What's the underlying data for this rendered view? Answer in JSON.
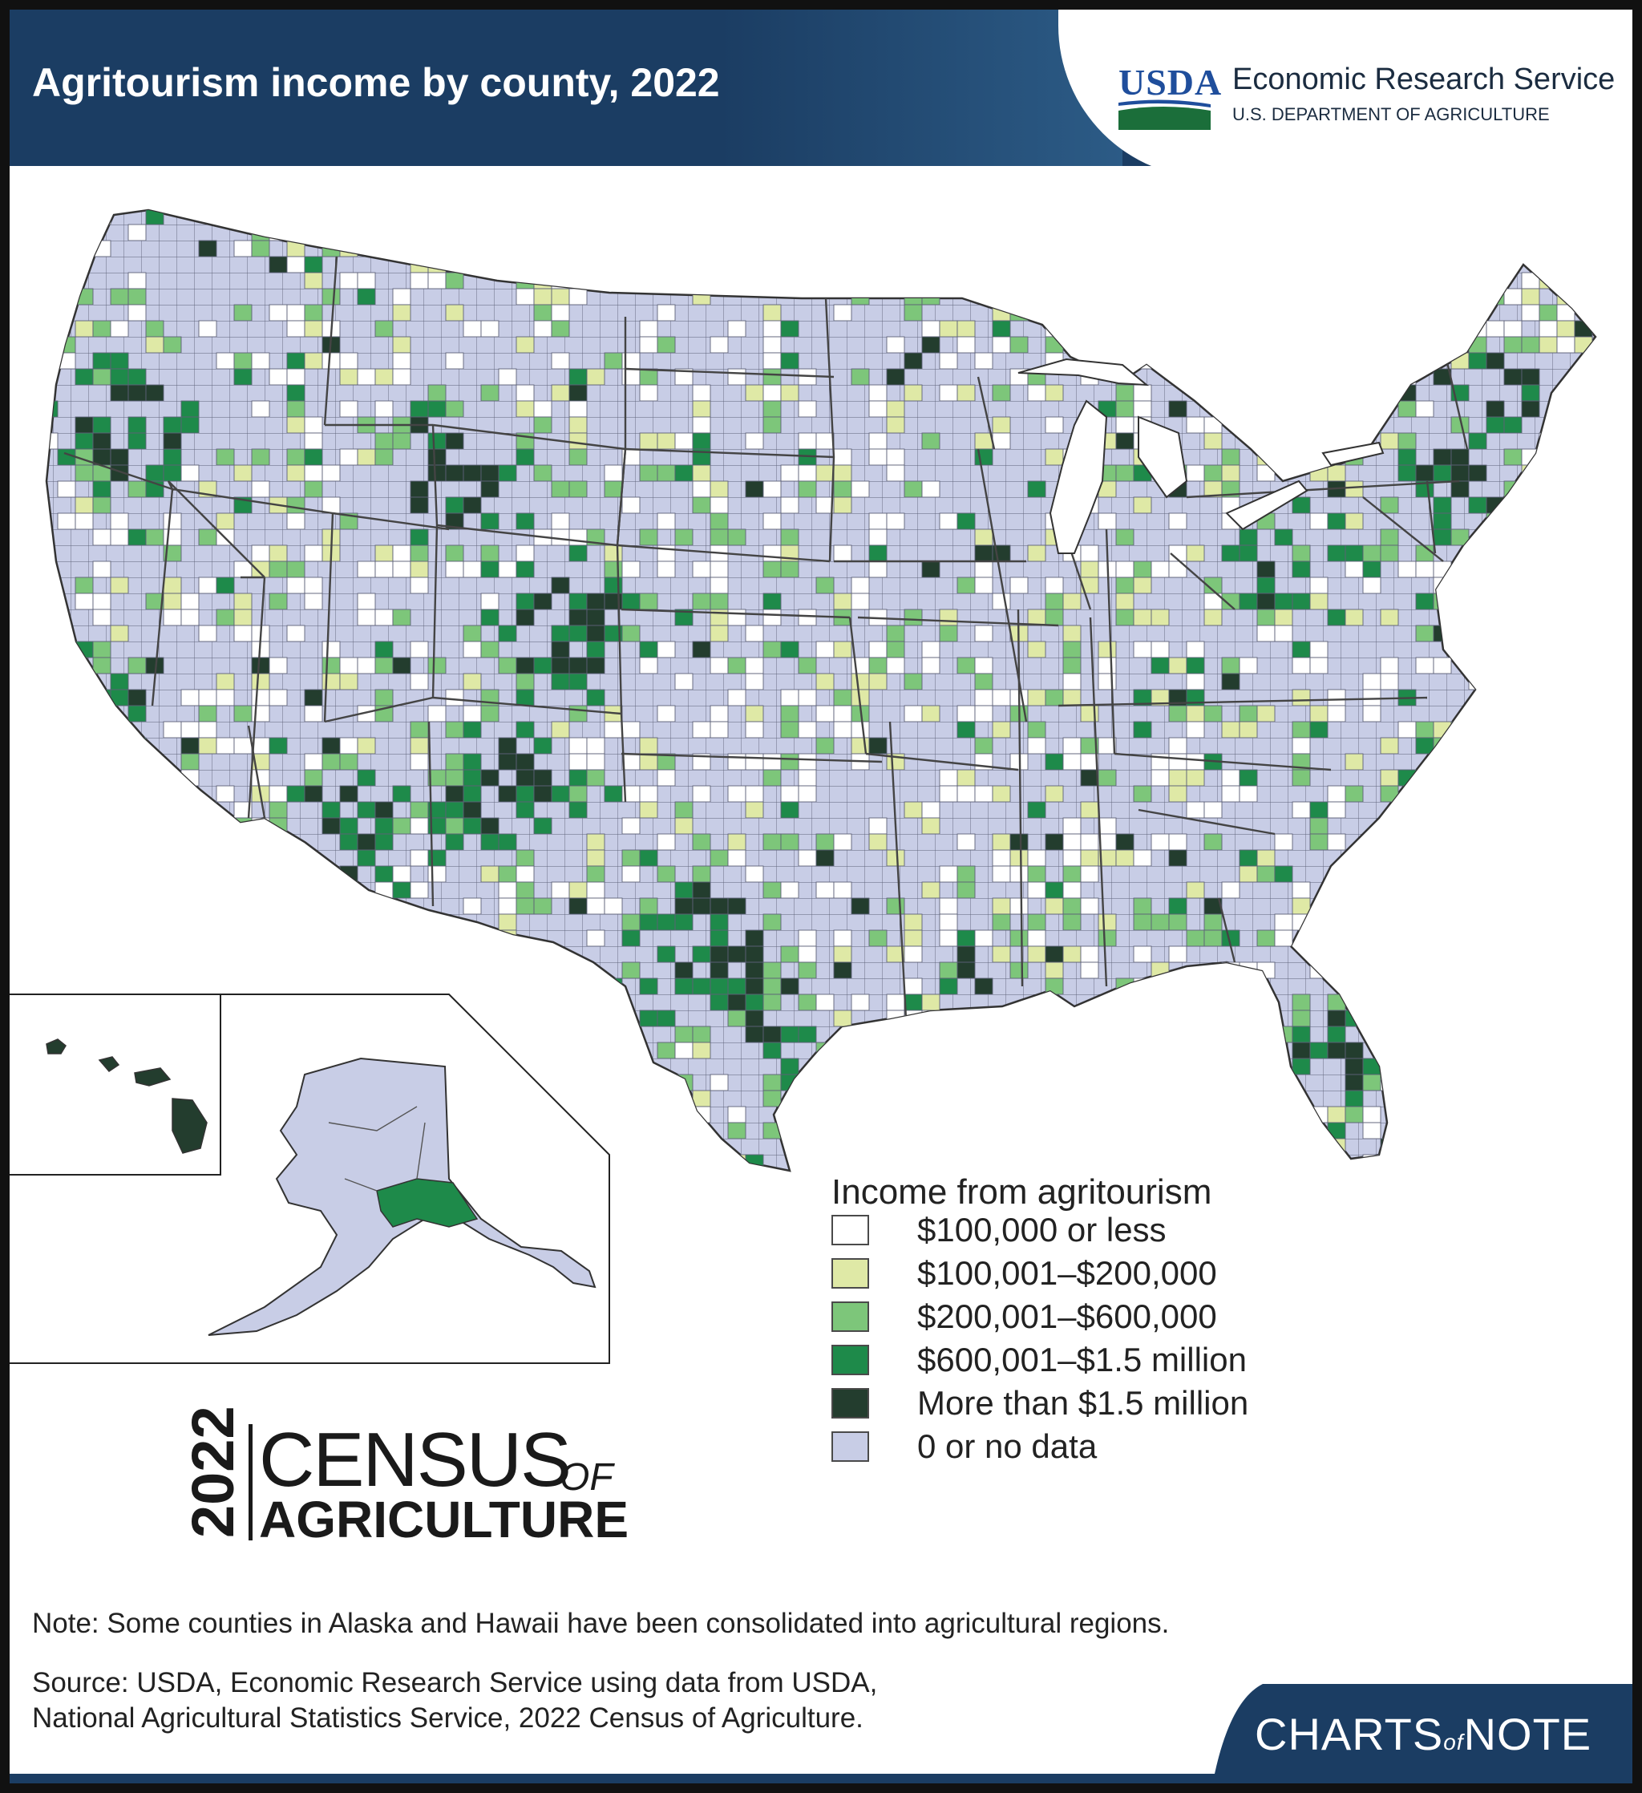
{
  "header": {
    "title": "Agritourism income by county, 2022",
    "usda_wordmark": "USDA",
    "agency_name": "Economic Research Service",
    "department": "U.S. DEPARTMENT OF AGRICULTURE"
  },
  "legend": {
    "title": "Income from agritourism",
    "items": [
      {
        "label": "$100,000 or less",
        "color": "#ffffff"
      },
      {
        "label": "$100,001–$200,000",
        "color": "#dfe9a6"
      },
      {
        "label": "$200,001–$600,000",
        "color": "#7dc67a"
      },
      {
        "label": "$600,001–$1.5 million",
        "color": "#1e8a4a"
      },
      {
        "label": "More than $1.5 million",
        "color": "#233d2e"
      },
      {
        "label": "0 or no data",
        "color": "#c8cde6"
      }
    ]
  },
  "census_logo": {
    "year": "2022",
    "word_census": "CENSUS",
    "word_of": "OF",
    "word_agriculture": "AGRICULTURE"
  },
  "footer": {
    "note": "Note: Some counties in Alaska and Hawaii have been consolidated into agricultural regions.",
    "source_line1": "Source: USDA, Economic Research Service using data from USDA,",
    "source_line2": "National Agricultural Statistics Service, 2022 Census of Agriculture."
  },
  "branding": {
    "charts_word": "CHARTS",
    "charts_of": "of",
    "charts_note": "NOTE"
  },
  "colors": {
    "header_navy": "#1b3d63",
    "usda_blue": "#1f4e9c",
    "usda_green": "#1b6e3a",
    "state_outline": "#444444"
  }
}
